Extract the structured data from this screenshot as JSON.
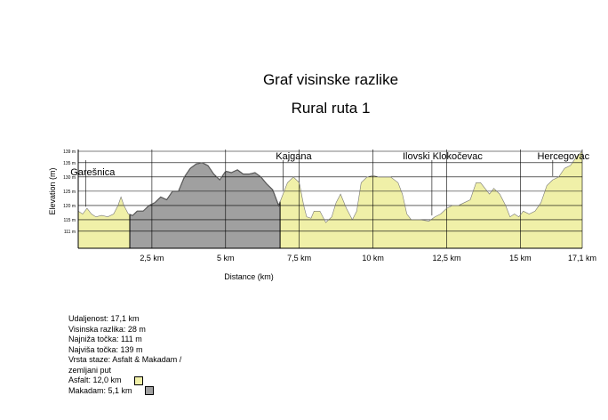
{
  "titles": {
    "line1": "Graf visinske razlike",
    "line2": "Rural ruta 1"
  },
  "chart_data": {
    "type": "area",
    "title": "Graf visinske razlike",
    "subtitle": "Rural ruta 1",
    "xlabel": "Distance (km)",
    "ylabel": "Elevation (m)",
    "xlim": [
      0,
      17.1
    ],
    "ylim": [
      105,
      139
    ],
    "x_ticks": [
      {
        "value": 2.5,
        "label": "2,5 km"
      },
      {
        "value": 5,
        "label": "5 km"
      },
      {
        "value": 7.5,
        "label": "7,5 km"
      },
      {
        "value": 10,
        "label": "10 km"
      },
      {
        "value": 12.5,
        "label": "12,5 km"
      },
      {
        "value": 15,
        "label": "15 km"
      },
      {
        "value": 17.1,
        "label": "17,1 km"
      }
    ],
    "y_ticks": [
      {
        "value": 111,
        "label": "111 m"
      },
      {
        "value": 115,
        "label": "115 m"
      },
      {
        "value": 120,
        "label": "120 m"
      },
      {
        "value": 125,
        "label": "125 m"
      },
      {
        "value": 130,
        "label": "130 m"
      },
      {
        "value": 135,
        "label": "135 m"
      },
      {
        "value": 139,
        "label": "139 m"
      }
    ],
    "grid": true,
    "series": [
      {
        "name": "Asfalt",
        "color": "#f0f0a8"
      },
      {
        "name": "Makadam",
        "color": "#a0a0a0"
      }
    ],
    "makadam_segments": [
      [
        1.75,
        6.85
      ]
    ],
    "profile": [
      [
        0,
        118
      ],
      [
        0.15,
        117
      ],
      [
        0.3,
        119
      ],
      [
        0.45,
        117
      ],
      [
        0.6,
        116
      ],
      [
        0.8,
        116.5
      ],
      [
        1.0,
        116
      ],
      [
        1.2,
        117
      ],
      [
        1.35,
        120
      ],
      [
        1.45,
        123
      ],
      [
        1.55,
        120
      ],
      [
        1.7,
        117
      ],
      [
        1.85,
        116.5
      ],
      [
        2.0,
        118
      ],
      [
        2.2,
        118
      ],
      [
        2.4,
        120
      ],
      [
        2.6,
        121
      ],
      [
        2.8,
        123
      ],
      [
        3.0,
        122
      ],
      [
        3.2,
        125
      ],
      [
        3.4,
        125
      ],
      [
        3.6,
        130
      ],
      [
        3.8,
        133
      ],
      [
        4.0,
        134.5
      ],
      [
        4.2,
        135
      ],
      [
        4.4,
        134
      ],
      [
        4.6,
        131
      ],
      [
        4.8,
        129
      ],
      [
        5.0,
        132
      ],
      [
        5.2,
        131.5
      ],
      [
        5.4,
        132.5
      ],
      [
        5.6,
        131
      ],
      [
        5.8,
        131
      ],
      [
        6.0,
        131.5
      ],
      [
        6.2,
        130
      ],
      [
        6.4,
        127.5
      ],
      [
        6.6,
        125.5
      ],
      [
        6.8,
        120
      ],
      [
        6.95,
        124
      ],
      [
        7.1,
        128
      ],
      [
        7.3,
        130
      ],
      [
        7.5,
        128
      ],
      [
        7.65,
        120
      ],
      [
        7.75,
        116
      ],
      [
        7.9,
        115.5
      ],
      [
        8.0,
        118
      ],
      [
        8.2,
        118
      ],
      [
        8.4,
        114
      ],
      [
        8.6,
        116
      ],
      [
        8.75,
        121
      ],
      [
        8.9,
        124
      ],
      [
        9.1,
        119
      ],
      [
        9.3,
        115
      ],
      [
        9.45,
        118
      ],
      [
        9.6,
        128
      ],
      [
        9.8,
        130
      ],
      [
        10.0,
        130.5
      ],
      [
        10.2,
        130
      ],
      [
        10.4,
        130
      ],
      [
        10.6,
        130
      ],
      [
        10.85,
        128
      ],
      [
        11.0,
        124
      ],
      [
        11.15,
        117
      ],
      [
        11.3,
        115
      ],
      [
        11.6,
        115
      ],
      [
        11.9,
        114.5
      ],
      [
        12.1,
        116
      ],
      [
        12.3,
        117
      ],
      [
        12.5,
        119
      ],
      [
        12.7,
        120
      ],
      [
        12.9,
        120
      ],
      [
        13.1,
        121
      ],
      [
        13.3,
        122
      ],
      [
        13.5,
        128
      ],
      [
        13.65,
        128
      ],
      [
        13.8,
        126
      ],
      [
        13.95,
        124
      ],
      [
        14.1,
        126
      ],
      [
        14.3,
        124
      ],
      [
        14.5,
        120
      ],
      [
        14.65,
        116
      ],
      [
        14.8,
        117
      ],
      [
        14.95,
        116
      ],
      [
        15.1,
        118
      ],
      [
        15.3,
        117
      ],
      [
        15.5,
        118
      ],
      [
        15.7,
        121
      ],
      [
        15.9,
        127
      ],
      [
        16.1,
        129
      ],
      [
        16.3,
        130
      ],
      [
        16.5,
        133
      ],
      [
        16.7,
        134
      ],
      [
        16.9,
        137
      ],
      [
        17.1,
        139
      ]
    ],
    "waypoints": [
      {
        "name": "Garešnica",
        "x": 0.25
      },
      {
        "name": "Kajgana",
        "x": 6.95
      },
      {
        "name": "Ilovski Klokočevac",
        "x": 12.0
      },
      {
        "name": "Hercegovac",
        "x": 16.1
      }
    ]
  },
  "summary": {
    "distance": "Udaljenost: 17,1 km",
    "elevation_diff": "Visinska razlika: 28 m",
    "lowest": "Najniža točka: 111 m",
    "highest": "Najviša točka: 139 m",
    "surface_line1": "Vrsta staze: Asfalt & Makadam /",
    "surface_line2": "zemljani put",
    "asphalt": "Asfalt: 12,0 km",
    "gravel": "Makadam: 5,1 km"
  }
}
